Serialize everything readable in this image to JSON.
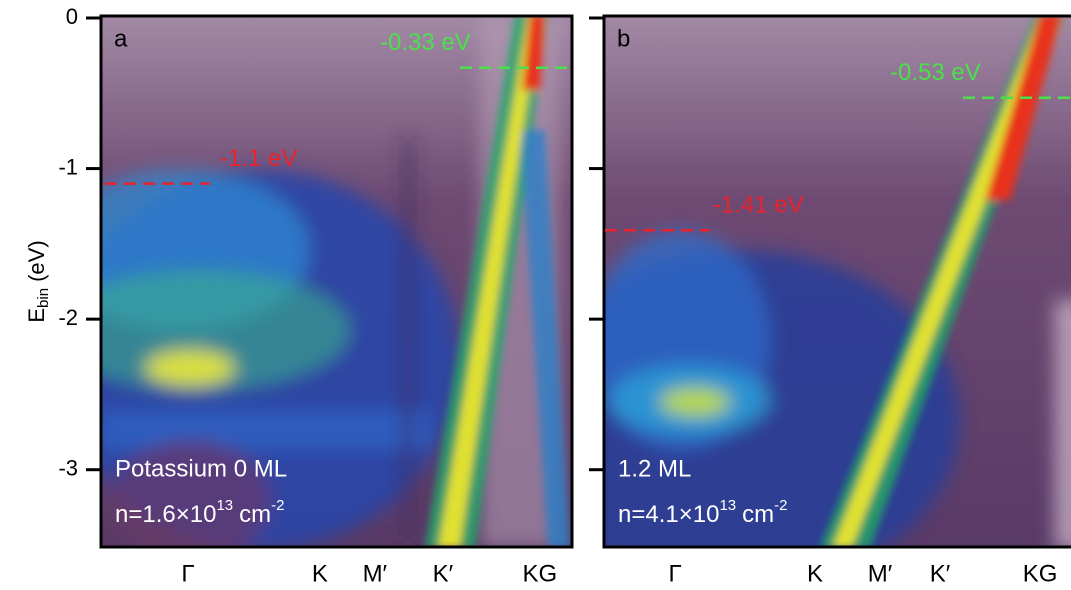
{
  "chart_data": [
    {
      "type": "arpes",
      "panel_label": "a",
      "ylim": [
        -3.5,
        0
      ],
      "yticks": [
        0,
        -1,
        -2,
        -3
      ],
      "tick_labels": true,
      "ylabel": {
        "main": "E",
        "sub": "bin",
        "unit": "(eV)"
      },
      "categories": [
        "Γ",
        "K",
        "M′",
        "K′",
        "KG"
      ],
      "annotations": [
        {
          "label": "-0.33 eV",
          "value": -0.33,
          "color": "#4be04b"
        },
        {
          "label": "-1.1 eV",
          "value": -1.1,
          "color": "#e8232d"
        }
      ],
      "doping": "Potassium 0 ML",
      "density": {
        "text": "n=1.6×10",
        "exp": "13",
        "unit": "cm",
        "unit_exp": "-2"
      }
    },
    {
      "type": "arpes",
      "panel_label": "b",
      "ylim": [
        -3.5,
        0
      ],
      "yticks": [
        0,
        -1,
        -2,
        -3
      ],
      "tick_labels": false,
      "categories": [
        "Γ",
        "K",
        "M′",
        "K′",
        "KG"
      ],
      "annotations": [
        {
          "label": "-0.53 eV",
          "value": -0.53,
          "color": "#4be04b"
        },
        {
          "label": "-1.41 eV",
          "value": -1.41,
          "color": "#e8232d"
        }
      ],
      "doping": "1.2 ML",
      "density": {
        "text": "n=4.1×10",
        "exp": "13",
        "unit": "cm",
        "unit_exp": "-2"
      }
    }
  ]
}
